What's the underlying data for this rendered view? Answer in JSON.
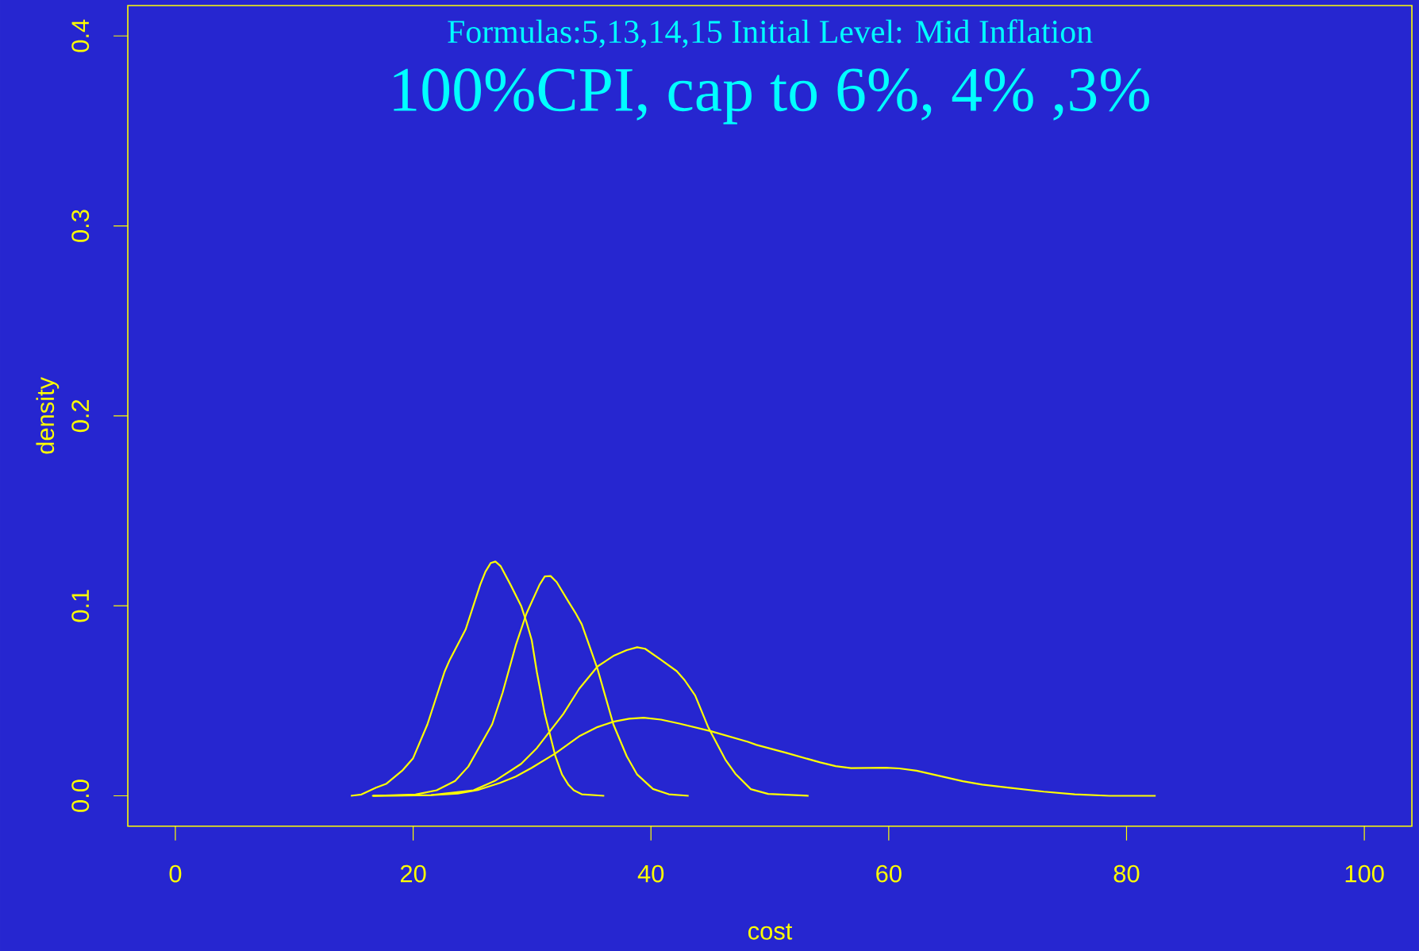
{
  "chart_data": {
    "type": "line",
    "title": "Formulas:5,13,14,15 Initial Level: Mid Inflation",
    "subtitle": "100%CPI, cap to 6%, 4%  ,3%",
    "xlabel": "cost",
    "ylabel": "density",
    "xlim": [
      -4,
      104
    ],
    "ylim": [
      -0.016,
      0.416
    ],
    "xticks": [
      0,
      20,
      40,
      60,
      80,
      100
    ],
    "yticks": [
      {
        "value": 0,
        "label": "0.0"
      },
      0.1,
      0.2,
      0.3,
      0.4
    ],
    "grid": false,
    "series": [
      {
        "color": "#ffff00",
        "x": [
          14.76,
          15.65,
          16.87,
          17.76,
          19.09,
          19.98,
          21.2,
          22.64,
          23.08,
          24.41,
          25.64,
          26.08,
          26.52,
          26.92,
          27.37,
          28.19,
          29.08,
          29.52,
          29.97,
          30.4,
          31.07,
          31.96,
          32.52,
          33.07,
          33.51,
          34.18,
          36.07
        ],
        "values": [
          0,
          0.0007,
          0.0043,
          0.0064,
          0.0133,
          0.0196,
          0.0376,
          0.0653,
          0.0716,
          0.0875,
          0.1111,
          0.118,
          0.1225,
          0.1233,
          0.1208,
          0.1111,
          0.1,
          0.0917,
          0.082,
          0.0653,
          0.0431,
          0.0209,
          0.0112,
          0.0057,
          0.0029,
          0.0008,
          0
        ]
      },
      {
        "color": "#ffff00",
        "x": [
          16.54,
          20.2,
          21.98,
          23.53,
          24.64,
          26.64,
          27.52,
          28.63,
          29.52,
          30.63,
          31.07,
          31.56,
          32.07,
          33.07,
          33.63,
          34.18,
          34.73,
          35.51,
          36.84,
          37.96,
          38.84,
          40.17,
          41.5,
          43.17
        ],
        "values": [
          0,
          0.0007,
          0.0029,
          0.0078,
          0.0154,
          0.0376,
          0.0542,
          0.0792,
          0.0958,
          0.1111,
          0.1155,
          0.1157,
          0.1125,
          0.1021,
          0.0965,
          0.0903,
          0.0806,
          0.0667,
          0.0376,
          0.0209,
          0.0112,
          0.0036,
          0.0008,
          0
        ]
      },
      {
        "color": "#ffff00",
        "x": [
          16.63,
          21.5,
          25.08,
          26.86,
          29.08,
          30.4,
          32.63,
          33.96,
          35.51,
          36.84,
          37.96,
          38.84,
          39.51,
          40.84,
          42.17,
          42.83,
          43.72,
          44.83,
          46.29,
          47.1,
          48.4,
          49.86,
          53.26
        ],
        "values": [
          0,
          0.0004,
          0.0029,
          0.0078,
          0.0168,
          0.0251,
          0.0431,
          0.0563,
          0.0681,
          0.0736,
          0.0767,
          0.0782,
          0.0774,
          0.0716,
          0.0656,
          0.0609,
          0.0528,
          0.0359,
          0.0187,
          0.0116,
          0.0035,
          0.001,
          0
        ]
      },
      {
        "color": "#ffff00",
        "x": [
          16.63,
          21.5,
          23.75,
          25.53,
          27.3,
          28.63,
          29.97,
          31.96,
          33.96,
          35.51,
          36.84,
          38.17,
          39.39,
          40.84,
          42.39,
          45.05,
          48.16,
          48.88,
          51.32,
          54.23,
          55.53,
          56.83,
          59.75,
          60.89,
          62.34,
          66.23,
          67.86,
          73.04,
          75.64,
          78.56,
          82.45
        ],
        "values": [
          0,
          0.0003,
          0.0012,
          0.0032,
          0.0068,
          0.0101,
          0.0147,
          0.0223,
          0.0313,
          0.0362,
          0.039,
          0.0406,
          0.0411,
          0.0401,
          0.038,
          0.034,
          0.0284,
          0.0268,
          0.0227,
          0.0176,
          0.0156,
          0.0146,
          0.0148,
          0.0144,
          0.0132,
          0.0077,
          0.0059,
          0.0022,
          0.0008,
          0,
          0
        ]
      }
    ]
  }
}
